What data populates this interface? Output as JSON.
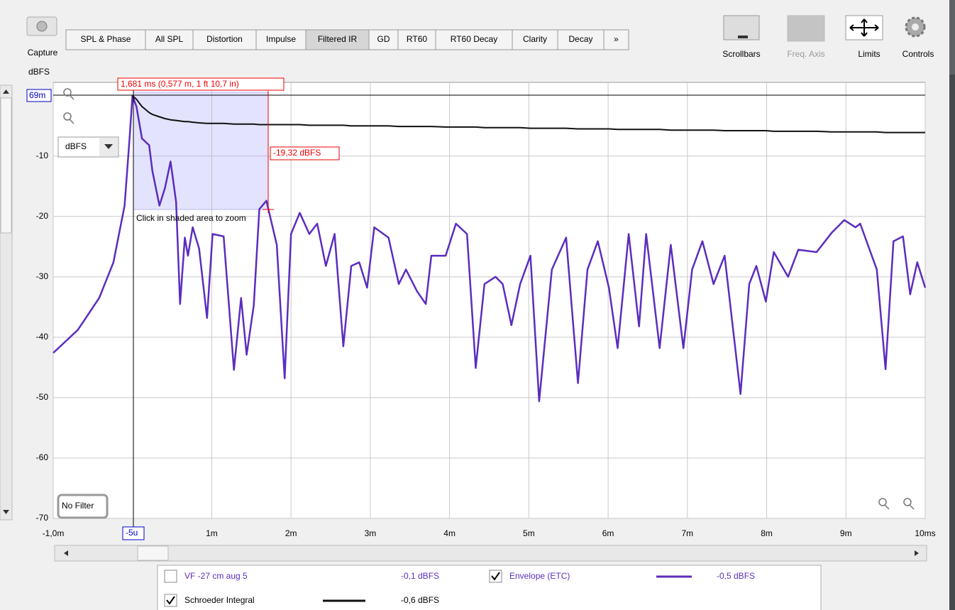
{
  "toolbar": {
    "capture": "Capture",
    "tabs": [
      "SPL & Phase",
      "All SPL",
      "Distortion",
      "Impulse",
      "Filtered IR",
      "GD",
      "RT60",
      "RT60 Decay",
      "Clarity",
      "Decay",
      "»"
    ],
    "tools": [
      "Scrollbars",
      "Freq. Axis",
      "Limits",
      "Controls"
    ]
  },
  "chart_data": {
    "type": "line",
    "y_label": "dBFS",
    "xlim": [
      -1,
      10
    ],
    "ylim": [
      -70,
      2.2
    ],
    "xticks": [
      {
        "value": -1,
        "label": "-1,0m"
      },
      {
        "value": 1,
        "label": "1m"
      },
      {
        "value": 2,
        "label": "2m"
      },
      {
        "value": 3,
        "label": "3m"
      },
      {
        "value": 4,
        "label": "4m"
      },
      {
        "value": 5,
        "label": "5m"
      },
      {
        "value": 6,
        "label": "6m"
      },
      {
        "value": 7,
        "label": "7m"
      },
      {
        "value": 8,
        "label": "8m"
      },
      {
        "value": 9,
        "label": "9m"
      },
      {
        "value": 10,
        "label": "10ms"
      }
    ],
    "yticks": [
      -10,
      -20,
      -30,
      -40,
      -50,
      -60,
      -70
    ],
    "grid": true,
    "x": [
      -1.0,
      -0.69,
      -0.42,
      -0.24,
      -0.1,
      -0.04,
      0.0,
      0.05,
      0.12,
      0.21,
      0.25,
      0.34,
      0.41,
      0.48,
      0.55,
      0.6,
      0.66,
      0.7,
      0.76,
      0.84,
      0.94,
      1.01,
      1.15,
      1.28,
      1.37,
      1.44,
      1.53,
      1.6,
      1.69,
      1.82,
      1.92,
      2.0,
      2.11,
      2.23,
      2.33,
      2.44,
      2.55,
      2.66,
      2.76,
      2.86,
      2.96,
      3.05,
      3.23,
      3.36,
      3.45,
      3.59,
      3.7,
      3.77,
      3.95,
      4.08,
      4.22,
      4.33,
      4.44,
      4.58,
      4.67,
      4.78,
      4.89,
      5.02,
      5.13,
      5.29,
      5.47,
      5.62,
      5.74,
      5.87,
      6.01,
      6.12,
      6.26,
      6.39,
      6.48,
      6.65,
      6.79,
      6.95,
      7.06,
      7.19,
      7.33,
      7.47,
      7.67,
      7.78,
      7.87,
      7.99,
      8.09,
      8.27,
      8.4,
      8.63,
      8.82,
      8.98,
      9.12,
      9.18,
      9.39,
      9.5,
      9.6,
      9.72,
      9.81,
      9.9,
      10.0
    ],
    "series": [
      {
        "name": "Envelope (ETC)",
        "color": "#5b2dbf",
        "values": [
          -42.6,
          -38.8,
          -33.5,
          -27.6,
          -18.2,
          -7.6,
          0,
          -1.8,
          -7.1,
          -8.2,
          -12.4,
          -18.2,
          -15.3,
          -10.9,
          -17.6,
          -34.5,
          -23.5,
          -26.5,
          -21.8,
          -25.3,
          -36.8,
          -22.9,
          -23.3,
          -45.4,
          -33.5,
          -42.9,
          -34.7,
          -18.8,
          -17.4,
          -24.7,
          -46.8,
          -22.9,
          -19.4,
          -22.9,
          -21.2,
          -28.2,
          -22.9,
          -41.5,
          -28.2,
          -27.6,
          -31.8,
          -21.8,
          -23.5,
          -31.2,
          -28.8,
          -32.4,
          -34.5,
          -26.5,
          -26.5,
          -21.2,
          -22.9,
          -45.1,
          -31.2,
          -30.0,
          -31.2,
          -38.0,
          -31.2,
          -26.5,
          -50.6,
          -28.8,
          -23.5,
          -47.6,
          -28.8,
          -24.1,
          -31.8,
          -41.8,
          -22.9,
          -38.2,
          -22.9,
          -41.8,
          -24.7,
          -41.8,
          -28.8,
          -24.1,
          -31.2,
          -26.5,
          -49.4,
          -31.2,
          -28.2,
          -34.1,
          -25.9,
          -30.0,
          -25.5,
          -25.9,
          -22.7,
          -20.6,
          -21.8,
          -21.2,
          -28.8,
          -45.3,
          -24.1,
          -23.3,
          -32.9,
          -27.6,
          -31.8
        ]
      },
      {
        "name": "Schroeder Integral",
        "color": "#111111",
        "values": [
          null,
          null,
          null,
          null,
          null,
          null,
          0,
          -0.6,
          -1.8,
          -2.8,
          -3.1,
          -3.5,
          -3.8,
          -4.0,
          -4.1,
          -4.2,
          -4.3,
          -4.3,
          -4.4,
          -4.5,
          -4.6,
          -4.6,
          -4.6,
          -4.7,
          -4.7,
          -4.7,
          -4.7,
          -4.8,
          -4.8,
          -4.8,
          -4.8,
          -4.8,
          -4.8,
          -4.9,
          -4.9,
          -4.9,
          -4.9,
          -4.9,
          -5.0,
          -5.0,
          -5.0,
          -5.0,
          -5.0,
          -5.1,
          -5.1,
          -5.1,
          -5.1,
          -5.1,
          -5.2,
          -5.2,
          -5.2,
          -5.2,
          -5.3,
          -5.3,
          -5.3,
          -5.3,
          -5.3,
          -5.4,
          -5.4,
          -5.4,
          -5.4,
          -5.5,
          -5.5,
          -5.5,
          -5.5,
          -5.6,
          -5.6,
          -5.6,
          -5.6,
          -5.6,
          -5.7,
          -5.7,
          -5.7,
          -5.7,
          -5.7,
          -5.8,
          -5.8,
          -5.8,
          -5.8,
          -5.8,
          -5.9,
          -5.9,
          -5.9,
          -5.9,
          -6.0,
          -6.0,
          -6.0,
          -6.0,
          -6.0,
          -6.1,
          -6.1,
          -6.1,
          -6.1,
          -6.1,
          -6.1
        ]
      }
    ]
  },
  "cursor": {
    "time": "1,681 ms (0,577 m, 1 ft 10,7 in)",
    "level": "-19,32 dBFS",
    "hint": "Click in shaded area to zoom",
    "y_readout": "69m",
    "x_readout": "-5u"
  },
  "controls": {
    "units": "dBFS",
    "filter": "No Filter"
  },
  "legend": {
    "measurement": "VF -27 cm aug 5",
    "measurement_level": "-0,1 dBFS",
    "levels": [
      "-0,5 dBFS",
      "-0,6 dBFS"
    ]
  }
}
